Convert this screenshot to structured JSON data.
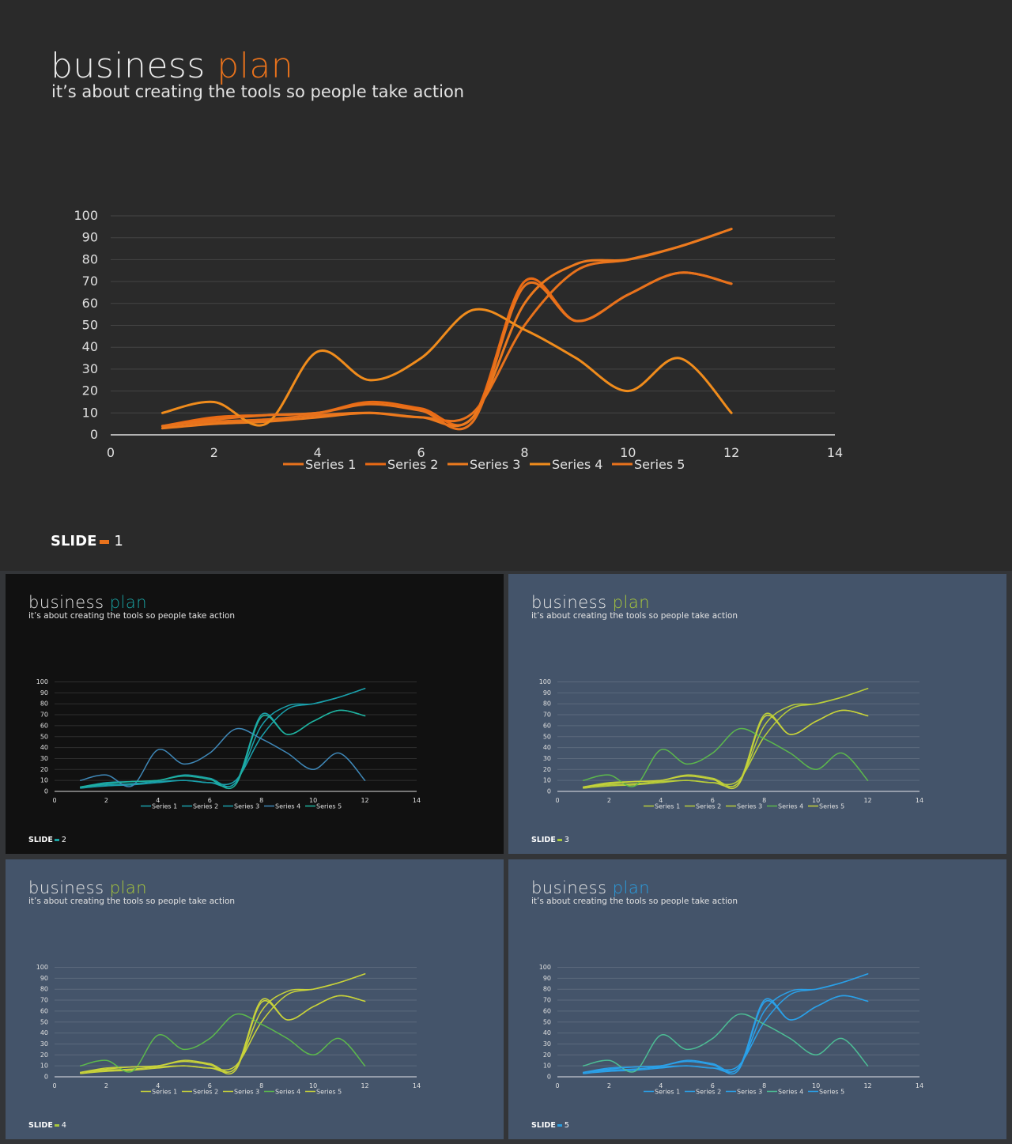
{
  "slides": [
    {
      "title_word1": "business",
      "title_word2": "plan",
      "subtitle": "it’s about creating the tools so people take action",
      "footer_label": "SLIDE",
      "footer_number": "1",
      "background": "#2a2a2a",
      "accent": "#e8721c",
      "series_colors": [
        "#e8721c",
        "#ea6a14",
        "#ec7a1e",
        "#f08c1c",
        "#e8721c"
      ]
    },
    {
      "title_word1": "business",
      "title_word2": "plan",
      "subtitle": "it’s about creating the tools so people take action",
      "footer_label": "SLIDE",
      "footer_number": "2",
      "background": "#111111",
      "accent": "#1aa4a4",
      "series_colors": [
        "#1a9faa",
        "#1a9faa",
        "#1a9faa",
        "#3f88b8",
        "#1fb39e"
      ]
    },
    {
      "title_word1": "business",
      "title_word2": "plan",
      "subtitle": "it’s about creating the tools so people take action",
      "footer_label": "SLIDE",
      "footer_number": "3",
      "background": "#44546a",
      "accent": "#a8c83c",
      "series_colors": [
        "#b8cc3a",
        "#b8cc3a",
        "#b8cc3a",
        "#5cb84c",
        "#c8d23a"
      ]
    },
    {
      "title_word1": "business",
      "title_word2": "plan",
      "subtitle": "it’s about creating the tools so people take action",
      "footer_label": "SLIDE",
      "footer_number": "4",
      "background": "#44546a",
      "accent": "#a8c83c",
      "series_colors": [
        "#c8d23a",
        "#c8d23a",
        "#c8d23a",
        "#5cb84c",
        "#c8d23a"
      ]
    },
    {
      "title_word1": "business",
      "title_word2": "plan",
      "subtitle": "it’s about creating the tools so people take action",
      "footer_label": "SLIDE",
      "footer_number": "5",
      "background": "#44546a",
      "accent": "#2a9ee0",
      "series_colors": [
        "#2aa0e8",
        "#2aa0e8",
        "#2aa0e8",
        "#4cbc94",
        "#2aa0e8"
      ]
    }
  ],
  "chart_data": {
    "type": "line",
    "smooth": true,
    "xlim": [
      0,
      14
    ],
    "ylim": [
      0,
      100
    ],
    "x_ticks": [
      0,
      2,
      4,
      6,
      8,
      10,
      12,
      14
    ],
    "y_ticks": [
      0,
      10,
      20,
      30,
      40,
      50,
      60,
      70,
      80,
      90,
      100
    ],
    "grid": "horizontal",
    "legend_position": "bottom",
    "x": [
      1,
      2,
      3,
      4,
      5,
      6,
      7,
      8,
      9,
      10,
      11,
      12
    ],
    "series": [
      {
        "name": "Series 1",
        "values": [
          4,
          6,
          7,
          9,
          10,
          8,
          10,
          50,
          75,
          80,
          86,
          94
        ]
      },
      {
        "name": "Series 2",
        "values": [
          4,
          8,
          9,
          10,
          15,
          12,
          8,
          70,
          52,
          64,
          74,
          69
        ]
      },
      {
        "name": "Series 3",
        "values": [
          3,
          5,
          6,
          8,
          10,
          8,
          8,
          60,
          78,
          80,
          86,
          94
        ]
      },
      {
        "name": "Series 4",
        "values": [
          10,
          15,
          5,
          38,
          25,
          35,
          57,
          48,
          35,
          20,
          35,
          10
        ]
      },
      {
        "name": "Series 5",
        "values": [
          4,
          7,
          9,
          10,
          14,
          11,
          6,
          68,
          52,
          64,
          74,
          69
        ]
      }
    ]
  }
}
